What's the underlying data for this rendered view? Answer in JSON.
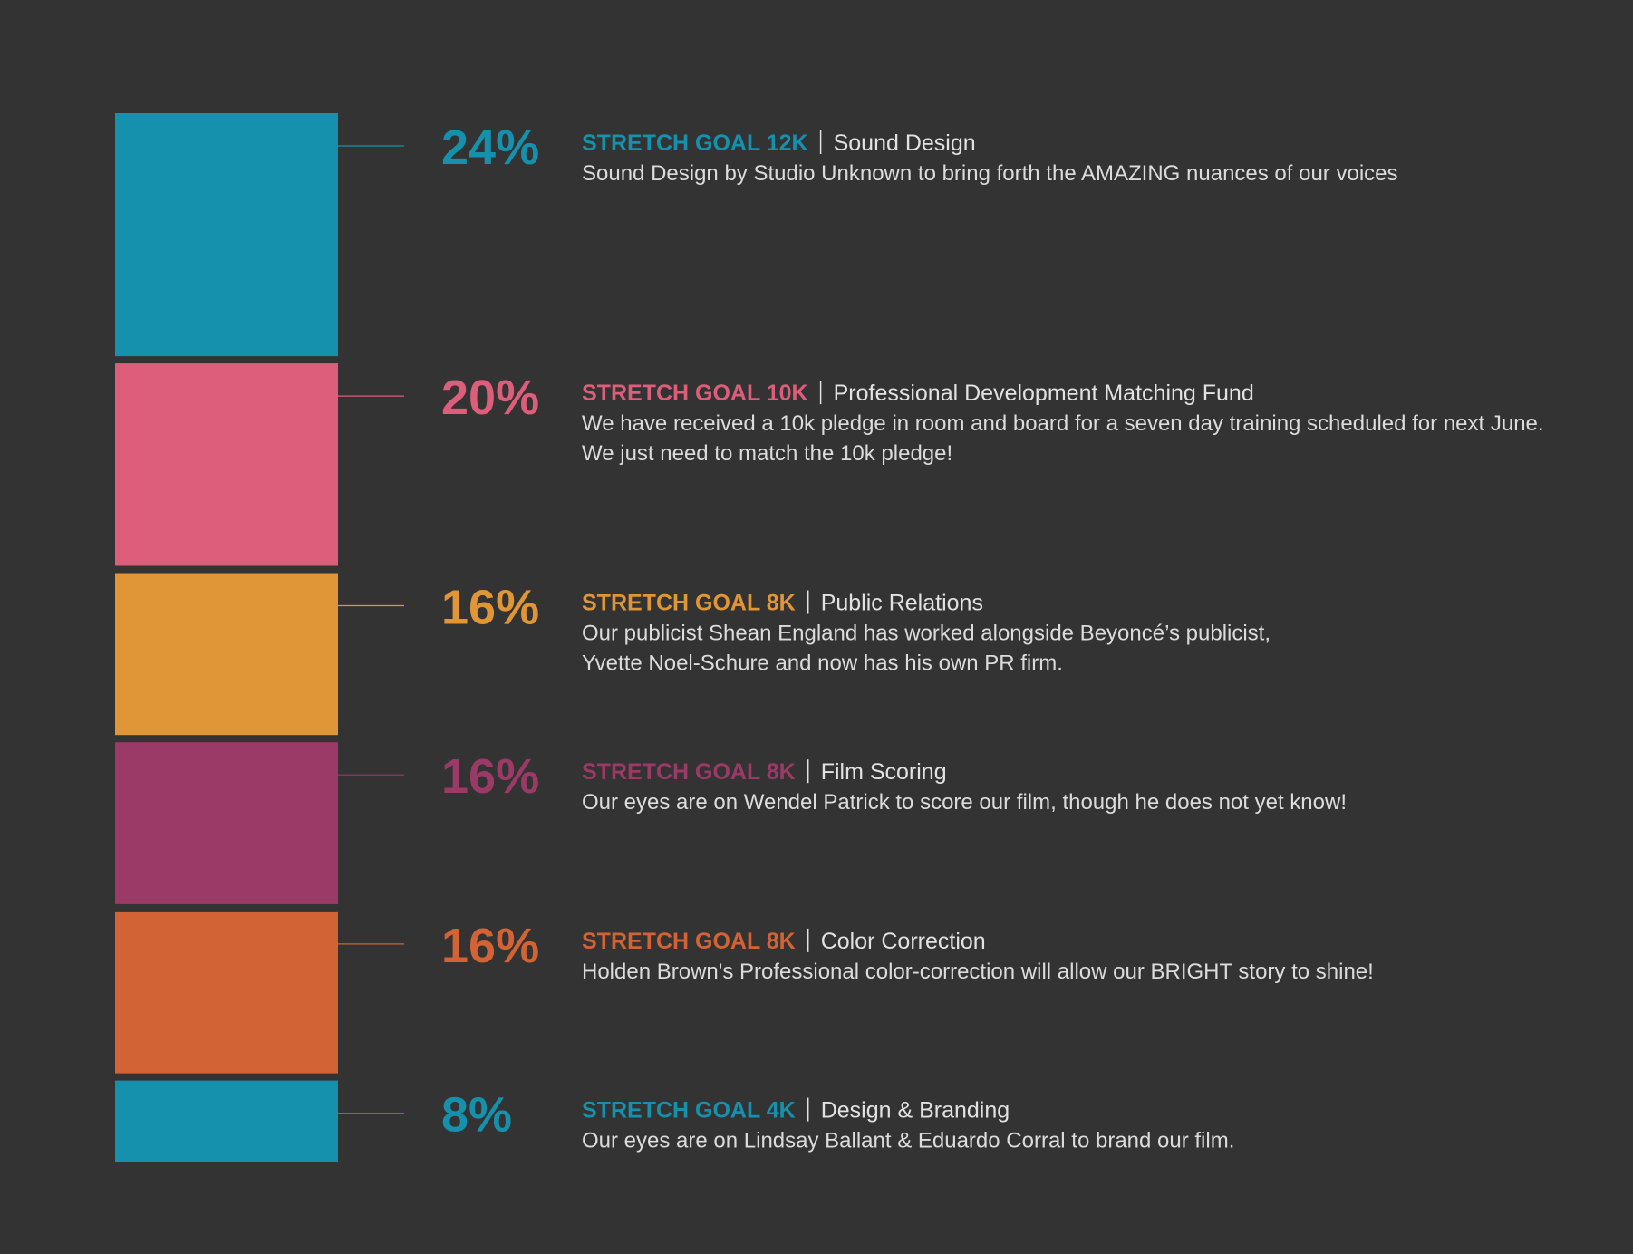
{
  "chart_data": {
    "type": "bar",
    "orientation": "stacked-vertical",
    "title": "",
    "categories": [
      "Sound Design",
      "Professional Development Matching Fund",
      "Public Relations",
      "Film Scoring",
      "Color Correction",
      "Design & Branding"
    ],
    "values": [
      24,
      20,
      16,
      16,
      16,
      8
    ],
    "value_suffix": "%",
    "colors": [
      "#1591ad",
      "#dc5e7a",
      "#e09636",
      "#9b3a66",
      "#d26335",
      "#1591ad"
    ],
    "items": [
      {
        "percent_label": "24%",
        "goal_label": "STRETCH GOAL 12K",
        "title": "Sound Design",
        "description": [
          "Sound Design by Studio Unknown to bring forth the AMAZING nuances of our voices"
        ]
      },
      {
        "percent_label": "20%",
        "goal_label": "STRETCH GOAL 10K",
        "title": "Professional Development Matching Fund",
        "description": [
          "We have received a 10k pledge in room and board for a seven day training scheduled for next June.",
          "We just need to match the 10k pledge!"
        ]
      },
      {
        "percent_label": "16%",
        "goal_label": "STRETCH GOAL 8K",
        "title": "Public Relations",
        "description": [
          "Our publicist Shean England has worked alongside Beyoncé’s publicist,",
          "Yvette Noel-Schure and now has his own PR firm."
        ]
      },
      {
        "percent_label": "16%",
        "goal_label": "STRETCH GOAL 8K",
        "title": "Film Scoring",
        "description": [
          "Our eyes are on Wendel Patrick to score our film, though he does not yet know!"
        ]
      },
      {
        "percent_label": "16%",
        "goal_label": "STRETCH GOAL 8K",
        "title": "Color Correction",
        "description": [
          "Holden Brown's Professional color-correction will allow our BRIGHT story to shine!"
        ]
      },
      {
        "percent_label": "8%",
        "goal_label": "STRETCH GOAL 4K",
        "title": "Design & Branding",
        "description": [
          "Our eyes are on Lindsay Ballant & Eduardo Corral to brand our film."
        ]
      }
    ],
    "background": "#333333",
    "legend": "none",
    "grid": false
  }
}
